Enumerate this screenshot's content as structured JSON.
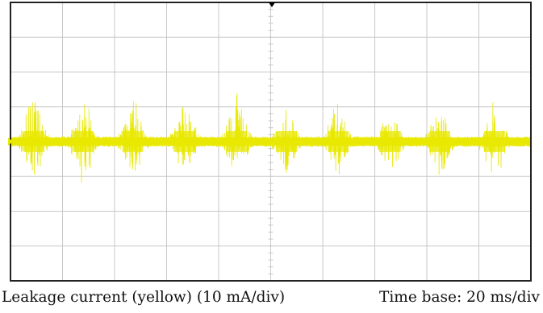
{
  "chart_data": {
    "type": "line",
    "title": "",
    "xlabel": "Time base: 20 ms/div",
    "ylabel": "Leakage current (yellow) (10 mA/div)",
    "x_unit": "ms",
    "y_unit": "mA",
    "xlim": [
      0,
      200
    ],
    "ylim": [
      -40,
      40
    ],
    "grid": true,
    "x_divisions": 10,
    "y_divisions": 8,
    "series": [
      {
        "name": "Leakage current",
        "color": "#e8e800",
        "baseline_noise_mA": 1.5,
        "bursts": [
          {
            "t_ms": 9,
            "peak_pos_mA": 14,
            "peak_neg_mA": -12
          },
          {
            "t_ms": 28,
            "peak_pos_mA": 12,
            "peak_neg_mA": -12
          },
          {
            "t_ms": 47,
            "peak_pos_mA": 11,
            "peak_neg_mA": -10
          },
          {
            "t_ms": 67,
            "peak_pos_mA": 11,
            "peak_neg_mA": -9
          },
          {
            "t_ms": 87,
            "peak_pos_mA": 13,
            "peak_neg_mA": -9
          },
          {
            "t_ms": 106,
            "peak_pos_mA": 9,
            "peak_neg_mA": -8
          },
          {
            "t_ms": 126,
            "peak_pos_mA": 11,
            "peak_neg_mA": -9
          },
          {
            "t_ms": 146,
            "peak_pos_mA": 9,
            "peak_neg_mA": -8
          },
          {
            "t_ms": 165,
            "peak_pos_mA": 10,
            "peak_neg_mA": -9
          },
          {
            "t_ms": 186,
            "peak_pos_mA": 11,
            "peak_neg_mA": -11
          }
        ]
      }
    ]
  },
  "caption": {
    "left": "Leakage current (yellow) (10 mA/div)",
    "right": "Time base: 20 ms/div"
  },
  "colors": {
    "trace": "#e8e800",
    "grid": "#c8c8c8",
    "border": "#222222",
    "marker": "#000000"
  }
}
